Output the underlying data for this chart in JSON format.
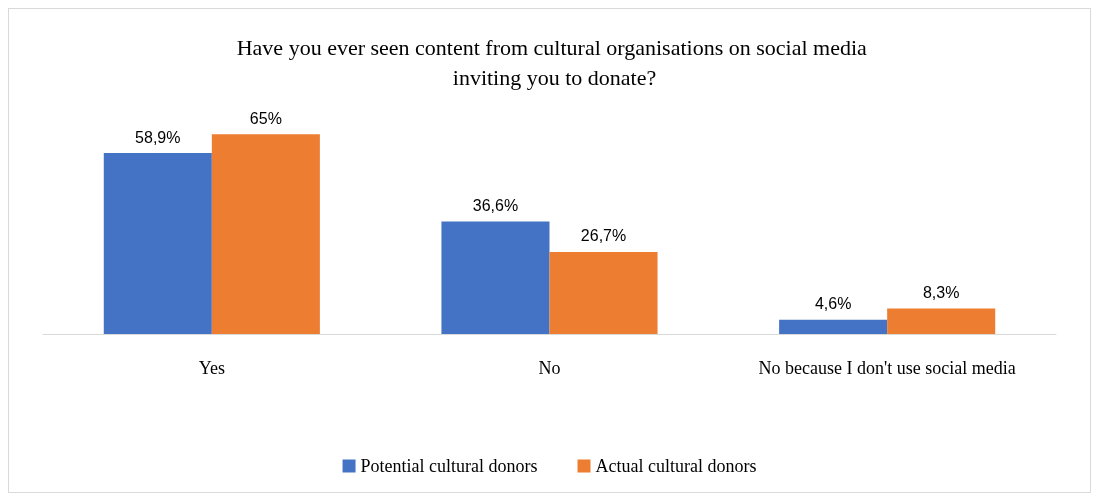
{
  "chart_data": {
    "type": "bar",
    "title": "Have you ever seen content from cultural organisations on social media inviting you to donate?",
    "categories": [
      "Yes",
      "No",
      "No because I don't use social media"
    ],
    "series": [
      {
        "name": "Potential cultural donors",
        "color": "#4472c4",
        "values": [
          58.9,
          36.6,
          4.6
        ],
        "value_labels": [
          "58,9%",
          "36,6%",
          "4,6%"
        ]
      },
      {
        "name": "Actual cultural donors",
        "color": "#ed7d31",
        "values": [
          65,
          26.7,
          8.3
        ],
        "value_labels": [
          "65%",
          "26,7%",
          "8,3%"
        ]
      }
    ],
    "legend": "bottom"
  }
}
